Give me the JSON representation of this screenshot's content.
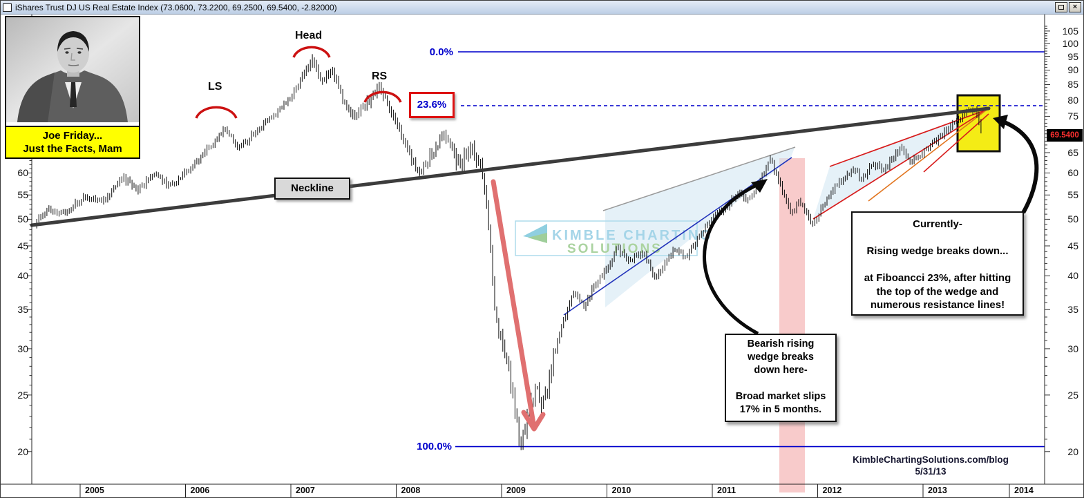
{
  "window": {
    "title": "iShares Trust DJ US Real Estate Index (73.0600, 73.2200, 69.2500, 69.5400, -2.82000)",
    "icons": [
      {
        "name": "app-icon"
      },
      {
        "name": "restore-icon"
      },
      {
        "name": "close-icon",
        "glyph": "×"
      }
    ]
  },
  "joe_friday": {
    "caption_line1": "Joe Friday...",
    "caption_line2": "Just the Facts, Mam"
  },
  "pattern_labels": {
    "left_shoulder": "LS",
    "head": "Head",
    "right_shoulder": "RS",
    "neckline": "Neckline"
  },
  "fibonacci": {
    "level_0": "0.0%",
    "level_236": "23.6%",
    "level_100": "100.0%"
  },
  "callouts": {
    "bearish_wedge": "Bearish rising\nwedge breaks\ndown here-\n\nBroad market slips\n17% in 5 months.",
    "currently": "Currently-\n\nRising wedge breaks down...\n\nat Fiboancci 23%, after hitting\nthe top of the wedge and\nnumerous resistance lines!"
  },
  "watermark": {
    "line1": "KIMBLE CHARTING",
    "line2": "SOLUTIONS"
  },
  "footer": {
    "site": "KimbleChartingSolutions.com/blog",
    "date": "5/31/13"
  },
  "price_tag": "69.5400",
  "chart_data": {
    "type": "ohlc",
    "symbol": "iShares Trust DJ US Real Estate Index",
    "last_quote": {
      "open": 73.06,
      "high": 73.22,
      "low": 69.25,
      "close": 69.54,
      "change": -2.82
    },
    "y_axis": {
      "scale": "log",
      "right_labels": [
        105,
        100,
        95,
        90,
        85,
        80,
        75,
        65,
        60,
        55,
        50,
        45,
        40,
        35,
        30,
        25,
        20
      ],
      "left_labels": [
        60,
        55,
        50,
        45,
        40,
        35,
        30,
        25,
        20
      ],
      "range": [
        19,
        107
      ]
    },
    "x_axis": {
      "years": [
        "2005",
        "2006",
        "2007",
        "2008",
        "2009",
        "2010",
        "2011",
        "2012",
        "2013",
        "2014"
      ]
    },
    "fib_levels": [
      {
        "label": "0.0%",
        "price": 96.7,
        "style": "solid"
      },
      {
        "label": "23.6%",
        "price": 78.2,
        "style": "dashed"
      },
      {
        "label": "100.0%",
        "price": 20.4,
        "style": "solid"
      }
    ],
    "current_price": 69.54,
    "anchors": [
      [
        2004.55,
        49
      ],
      [
        2004.7,
        52
      ],
      [
        2004.85,
        51
      ],
      [
        2005.05,
        55
      ],
      [
        2005.2,
        53.5
      ],
      [
        2005.4,
        59
      ],
      [
        2005.55,
        56
      ],
      [
        2005.7,
        60
      ],
      [
        2005.85,
        57
      ],
      [
        2006.0,
        60
      ],
      [
        2006.15,
        64
      ],
      [
        2006.3,
        69
      ],
      [
        2006.38,
        72
      ],
      [
        2006.5,
        66
      ],
      [
        2006.65,
        70
      ],
      [
        2006.8,
        74
      ],
      [
        2006.95,
        79
      ],
      [
        2007.05,
        83
      ],
      [
        2007.2,
        94
      ],
      [
        2007.28,
        86
      ],
      [
        2007.38,
        90
      ],
      [
        2007.5,
        80
      ],
      [
        2007.6,
        75
      ],
      [
        2007.72,
        79
      ],
      [
        2007.85,
        84
      ],
      [
        2007.95,
        77
      ],
      [
        2008.05,
        70
      ],
      [
        2008.2,
        60
      ],
      [
        2008.35,
        65
      ],
      [
        2008.45,
        70
      ],
      [
        2008.6,
        62
      ],
      [
        2008.72,
        66
      ],
      [
        2008.82,
        60
      ],
      [
        2008.88,
        48
      ],
      [
        2008.95,
        33
      ],
      [
        2009.05,
        29
      ],
      [
        2009.12,
        24
      ],
      [
        2009.18,
        20.6
      ],
      [
        2009.25,
        23
      ],
      [
        2009.32,
        26
      ],
      [
        2009.4,
        24
      ],
      [
        2009.5,
        29.5
      ],
      [
        2009.6,
        34
      ],
      [
        2009.68,
        37.5
      ],
      [
        2009.78,
        35.5
      ],
      [
        2009.9,
        39
      ],
      [
        2010.0,
        41
      ],
      [
        2010.1,
        44.5
      ],
      [
        2010.2,
        42.5
      ],
      [
        2010.35,
        44
      ],
      [
        2010.45,
        39.5
      ],
      [
        2010.55,
        42
      ],
      [
        2010.65,
        44.5
      ],
      [
        2010.75,
        43
      ],
      [
        2010.85,
        46
      ],
      [
        2010.95,
        49
      ],
      [
        2011.05,
        51
      ],
      [
        2011.15,
        53
      ],
      [
        2011.25,
        55.5
      ],
      [
        2011.35,
        54
      ],
      [
        2011.45,
        58
      ],
      [
        2011.55,
        63.5
      ],
      [
        2011.62,
        59
      ],
      [
        2011.68,
        55
      ],
      [
        2011.75,
        51
      ],
      [
        2011.82,
        54
      ],
      [
        2011.88,
        51.5
      ],
      [
        2011.95,
        48.5
      ],
      [
        2012.05,
        53
      ],
      [
        2012.15,
        56.5
      ],
      [
        2012.25,
        59
      ],
      [
        2012.35,
        61
      ],
      [
        2012.42,
        58.5
      ],
      [
        2012.52,
        62.5
      ],
      [
        2012.62,
        60.5
      ],
      [
        2012.72,
        64
      ],
      [
        2012.8,
        66
      ],
      [
        2012.88,
        62.5
      ],
      [
        2012.95,
        64
      ],
      [
        2013.05,
        66.5
      ],
      [
        2013.15,
        69
      ],
      [
        2013.25,
        71.5
      ],
      [
        2013.32,
        73.5
      ],
      [
        2013.42,
        76.5
      ],
      [
        2013.5,
        77.6
      ],
      [
        2013.56,
        69.5
      ]
    ],
    "colors": {
      "fib": "#0000cc",
      "neckline": "#3c3c3c",
      "wedge_fill": "#cfe6f2",
      "red_trendline": "#d81d1d",
      "orange_trendline": "#e2751f",
      "crash_arrow": "#e07070",
      "pink_band": "#f2a0a0",
      "highlight_box": "#f4ec15"
    }
  }
}
